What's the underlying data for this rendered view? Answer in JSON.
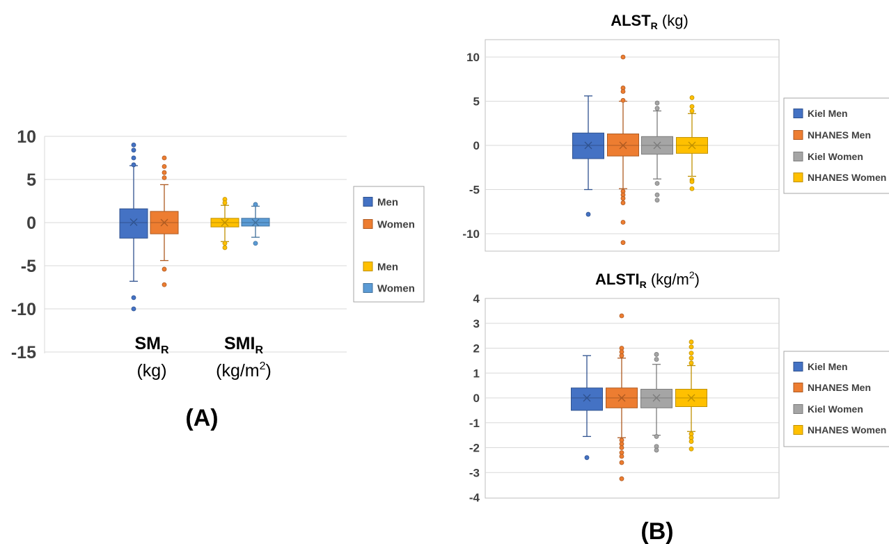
{
  "panel_labels": {
    "a": "(A)",
    "b": "(B)"
  },
  "chart_data": [
    {
      "type": "box",
      "id": "A",
      "ylim": [
        -15,
        10
      ],
      "yticks": [
        10,
        5,
        0,
        -5,
        -10,
        -15
      ],
      "group_labels": [
        {
          "main": "SM",
          "sub": "R",
          "unit": "(kg)",
          "unit_sup": ""
        },
        {
          "main": "SMI",
          "sub": "R",
          "unit": "(kg/m",
          "unit_sup": "2",
          "unit_end": ")"
        }
      ],
      "legend": [
        "Men",
        "Women",
        "Men",
        "Women"
      ],
      "series": [
        {
          "name": "Men",
          "group": 0,
          "color": "#4472C4",
          "edge": "#2F528F",
          "q1": -1.8,
          "median": 0.0,
          "q3": 1.6,
          "mean": 0.05,
          "whisker_low": -6.8,
          "whisker_high": 6.6,
          "outliers": [
            9.0,
            8.4,
            7.5,
            6.7,
            -8.7,
            -10.0
          ]
        },
        {
          "name": "Women",
          "group": 0,
          "color": "#ED7D31",
          "edge": "#AE5A21",
          "q1": -1.3,
          "median": 0.0,
          "q3": 1.3,
          "mean": 0.0,
          "whisker_low": -4.4,
          "whisker_high": 4.4,
          "outliers": [
            7.5,
            6.5,
            5.8,
            5.2,
            -5.4,
            -7.2
          ]
        },
        {
          "name": "Men",
          "group": 1,
          "color": "#FFC000",
          "edge": "#BF9000",
          "q1": -0.5,
          "median": 0.0,
          "q3": 0.5,
          "mean": 0.0,
          "whisker_low": -2.2,
          "whisker_high": 2.0,
          "outliers": [
            2.7,
            2.3,
            -2.4,
            -2.9
          ]
        },
        {
          "name": "Women",
          "group": 1,
          "color": "#5B9BD5",
          "edge": "#41719C",
          "q1": -0.4,
          "median": 0.0,
          "q3": 0.5,
          "mean": 0.0,
          "whisker_low": -1.7,
          "whisker_high": 1.9,
          "outliers": [
            2.1,
            -2.4
          ]
        }
      ]
    },
    {
      "type": "box",
      "id": "B1",
      "title": "ALST",
      "title_sub": "R",
      "title_unit": "(kg)",
      "ylim": [
        -12,
        12
      ],
      "yticks": [
        10,
        5,
        0,
        -5,
        -10
      ],
      "legend": [
        "Kiel Men",
        "NHANES Men",
        "Kiel Women",
        "NHANES Women"
      ],
      "series": [
        {
          "name": "Kiel Men",
          "color": "#4472C4",
          "edge": "#2F528F",
          "q1": -1.5,
          "median": 0.0,
          "q3": 1.4,
          "mean": 0.0,
          "whisker_low": -5.0,
          "whisker_high": 5.6,
          "outliers": [
            -7.8
          ]
        },
        {
          "name": "NHANES Men",
          "color": "#ED7D31",
          "edge": "#AE5A21",
          "q1": -1.2,
          "median": 0.0,
          "q3": 1.3,
          "mean": 0.0,
          "whisker_low": -4.9,
          "whisker_high": 5.0,
          "outliers": [
            10.0,
            6.5,
            6.1,
            5.1,
            -5.2,
            -5.6,
            -6.0,
            -6.5,
            -8.7,
            -11.0
          ]
        },
        {
          "name": "Kiel Women",
          "color": "#A5A5A5",
          "edge": "#7C7C7C",
          "q1": -1.0,
          "median": 0.0,
          "q3": 1.0,
          "mean": 0.0,
          "whisker_low": -3.8,
          "whisker_high": 3.9,
          "outliers": [
            4.8,
            4.2,
            -4.3,
            -5.6,
            -6.2
          ]
        },
        {
          "name": "NHANES Women",
          "color": "#FFC000",
          "edge": "#BF9000",
          "q1": -0.9,
          "median": 0.0,
          "q3": 0.9,
          "mean": 0.0,
          "whisker_low": -3.5,
          "whisker_high": 3.6,
          "outliers": [
            5.4,
            4.4,
            3.9,
            -3.9,
            -4.1,
            -4.9
          ]
        }
      ]
    },
    {
      "type": "box",
      "id": "B2",
      "title": "ALSTI",
      "title_sub": "R",
      "title_unit": "(kg/m",
      "title_unit_sup": "2",
      "title_unit_end": ")",
      "ylim": [
        -4,
        4
      ],
      "yticks": [
        4,
        3,
        2,
        1,
        0,
        -1,
        -2,
        -3,
        -4
      ],
      "legend": [
        "Kiel Men",
        "NHANES Men",
        "Kiel Women",
        "NHANES Women"
      ],
      "series": [
        {
          "name": "Kiel Men",
          "color": "#4472C4",
          "edge": "#2F528F",
          "q1": -0.5,
          "median": 0.0,
          "q3": 0.4,
          "mean": 0.0,
          "whisker_low": -1.55,
          "whisker_high": 1.7,
          "outliers": [
            -2.4
          ]
        },
        {
          "name": "NHANES Men",
          "color": "#ED7D31",
          "edge": "#AE5A21",
          "q1": -0.4,
          "median": 0.0,
          "q3": 0.4,
          "mean": 0.0,
          "whisker_low": -1.6,
          "whisker_high": 1.6,
          "outliers": [
            3.3,
            2.0,
            1.85,
            1.7,
            -1.7,
            -1.85,
            -2.0,
            -2.2,
            -2.35,
            -2.6,
            -3.25
          ]
        },
        {
          "name": "Kiel Women",
          "color": "#A5A5A5",
          "edge": "#7C7C7C",
          "q1": -0.4,
          "median": 0.0,
          "q3": 0.35,
          "mean": 0.0,
          "whisker_low": -1.5,
          "whisker_high": 1.35,
          "outliers": [
            1.75,
            1.55,
            -1.55,
            -1.95,
            -2.1
          ]
        },
        {
          "name": "NHANES Women",
          "color": "#FFC000",
          "edge": "#BF9000",
          "q1": -0.35,
          "median": 0.0,
          "q3": 0.35,
          "mean": 0.0,
          "whisker_low": -1.35,
          "whisker_high": 1.3,
          "outliers": [
            2.25,
            2.05,
            1.8,
            1.6,
            1.4,
            -1.45,
            -1.6,
            -1.75,
            -2.05
          ]
        }
      ]
    }
  ]
}
